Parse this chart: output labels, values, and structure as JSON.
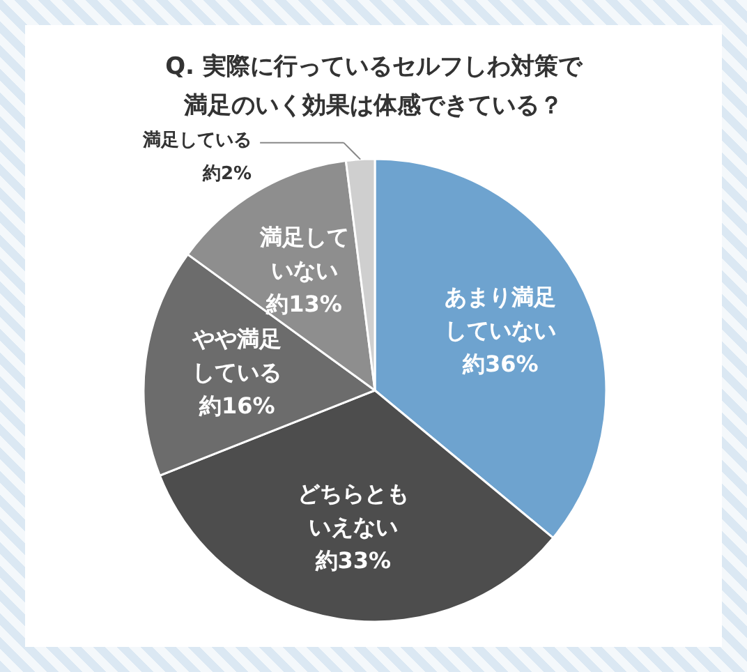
{
  "chart_data": {
    "type": "pie",
    "title": "Q. 実際に行っているセルフしわ対策で満足のいく効果は体感できている？",
    "categories": [
      "あまり満足していない",
      "どちらともいえない",
      "やや満足している",
      "満足していない",
      "満足している"
    ],
    "values": [
      36,
      33,
      16,
      13,
      2
    ],
    "colors": [
      "#6ea3cf",
      "#4d4d4d",
      "#6c6c6c",
      "#8e8e8e",
      "#cfcfcf"
    ],
    "value_labels": [
      "約36%",
      "約33%",
      "約16%",
      "約13%",
      "約2%"
    ]
  }
}
